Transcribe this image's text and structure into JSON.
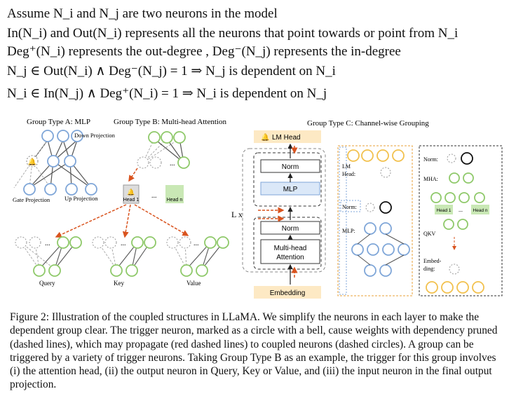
{
  "definitions": {
    "line1": "Assume N_i and N_j are two neurons in the model",
    "line2": "In(N_i) and Out(N_i) represents all the neurons that point towards or point from N_i",
    "line3": "Deg⁺(N_i) represents the out-degree , Deg⁻(N_j) represents the in-degree",
    "line4": "N_j ∈ Out(N_i) ∧ Deg⁻(N_j) = 1 ⇒ N_j is dependent on N_i",
    "line5": "N_i ∈ In(N_j) ∧ Deg⁺(N_i) = 1 ⇒ N_i is dependent on N_j"
  },
  "figure": {
    "group_a_title": "Group Type A: MLP",
    "group_b_title": "Group Type B: Multi-head Attention",
    "group_c_title": "Group Type C: Channel-wise Grouping",
    "down_projection": "Down Projection",
    "gate_projection": "Gate Projection",
    "up_projection": "Up Projection",
    "head_1": "Head 1",
    "head_n": "Head n",
    "ellipsis": "...",
    "query": "Query",
    "key": "Key",
    "value": "Value",
    "lm_head": "LM Head",
    "norm": "Norm",
    "mlp": "MLP",
    "multi_head": "Multi-head",
    "attention": "Attention",
    "embedding": "Embedding",
    "lx": "L x",
    "c_lm_head_1": "LM",
    "c_lm_head_2": "Head:",
    "c_norm": "Norm:",
    "c_mlp": "MLP:",
    "c_mha": "MHA:",
    "c_qkv": "QKV",
    "c_embed_1": "Embed-",
    "c_embed_2": "ding:"
  },
  "caption": "Figure 2: Illustration of the coupled structures in LLaMA. We simplify the neurons in each layer to make the dependent group clear. The trigger neuron, marked as a circle with a bell, cause weights with dependency pruned (dashed lines), which may propagate (red dashed lines) to coupled neurons (dashed circles). A group can be triggered by a variety of trigger neurons. Taking Group Type B as an example, the trigger for this group involves (i) the attention head, (ii) the output neuron in Query, Key or Value, and (iii) the input neuron in the final output projection.",
  "colors": {
    "blue": "#7fa6d8",
    "green": "#8fc96a",
    "yellow": "#f2c14e",
    "red_arrow": "#d9531e",
    "lm_head_fill": "#fde9c4",
    "mlp_fill": "#dbe8f8",
    "embedding_fill": "#fde9c4",
    "headn_fill": "#c9e8b5"
  }
}
